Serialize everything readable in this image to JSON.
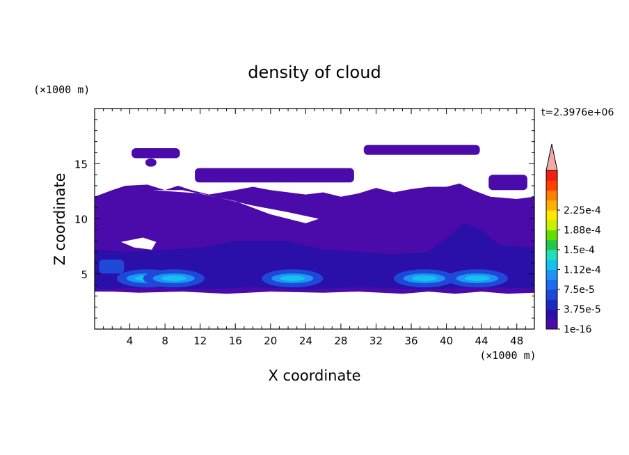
{
  "chart_data": {
    "type": "heatmap",
    "title": "density of cloud",
    "xlabel": "X coordinate",
    "ylabel": "Z coordinate",
    "x_unit": "(×1000 m)",
    "y_unit": "(×1000 m)",
    "time_label": "t=2.3976e+06",
    "xlim": [
      0,
      50
    ],
    "ylim": [
      0,
      20
    ],
    "x_ticks": [
      4,
      8,
      12,
      16,
      20,
      24,
      28,
      32,
      36,
      40,
      44,
      48
    ],
    "y_ticks": [
      5,
      10,
      15
    ],
    "grid": false,
    "colorbar": {
      "placement": "right",
      "levels": [
        "1e-16",
        "3.75e-5",
        "7.5e-5",
        "1.12e-4",
        "1.5e-4",
        "1.88e-4",
        "2.25e-4"
      ],
      "colors": [
        "#4B0AAA",
        "#2A10A8",
        "#1A2ABF",
        "#1E49D8",
        "#1E6BF0",
        "#1E95F5",
        "#14C2EE",
        "#20E0B8",
        "#22C84A",
        "#60E000",
        "#C8F000",
        "#FFE800",
        "#FFB000",
        "#FF8000",
        "#FF4000",
        "#F02010"
      ],
      "overflow_color": "#F4A7A7"
    },
    "features": {
      "background_cloud_color": "#4B0AAA",
      "layer_color": "#2A10A8",
      "core_color": "#1E49D8",
      "peak_color": "#14C2EE",
      "cores_x_centers": [
        6,
        9,
        22.5,
        37.5,
        43.5
      ],
      "cloud_base_z": 3.2,
      "cloud_top_z": 13,
      "upper_patches": [
        {
          "x": [
            4.2,
            9.7
          ],
          "z": [
            15.5,
            16.4
          ]
        },
        {
          "x": [
            11.4,
            29.5
          ],
          "z": [
            13.3,
            14.6
          ]
        },
        {
          "x": [
            30.6,
            43.8
          ],
          "z": [
            15.8,
            16.7
          ]
        },
        {
          "x": [
            44.8,
            49.2
          ],
          "z": [
            12.6,
            14.0
          ]
        }
      ]
    }
  }
}
